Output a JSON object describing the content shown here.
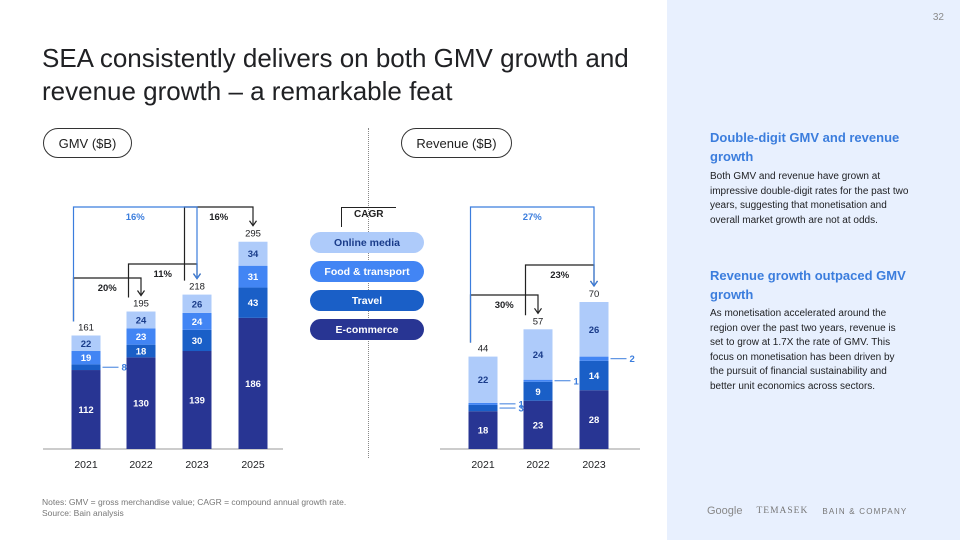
{
  "title": "SEA consistently delivers on both GMV growth and revenue growth – a remarkable feat",
  "page_number": "32",
  "cagr_label": "CAGR",
  "legend": [
    {
      "name": "Online media",
      "color": "#aecbfa",
      "text_color": "#1a3c8a"
    },
    {
      "name": "Food & transport",
      "color": "#4285f4",
      "text_color": "#ffffff"
    },
    {
      "name": "Travel",
      "color": "#1a5fc7",
      "text_color": "#ffffff"
    },
    {
      "name": "E-commerce",
      "color": "#283593",
      "text_color": "#ffffff"
    }
  ],
  "colors": {
    "ecommerce": "#283593",
    "travel": "#1a5fc7",
    "food": "#4285f4",
    "online": "#aecbfa",
    "accent": "#3b7ddd"
  },
  "chart_data": [
    {
      "type": "bar",
      "title": "GMV ($B)",
      "categories": [
        "2021",
        "2022",
        "2023",
        "2025"
      ],
      "series": [
        {
          "name": "E-commerce",
          "values": [
            112,
            130,
            139,
            186
          ]
        },
        {
          "name": "Travel",
          "values": [
            8,
            18,
            30,
            43
          ]
        },
        {
          "name": "Food & transport",
          "values": [
            19,
            23,
            24,
            31
          ]
        },
        {
          "name": "Online media",
          "values": [
            22,
            24,
            26,
            34
          ]
        }
      ],
      "totals": [
        161,
        195,
        218,
        295
      ],
      "cagr": [
        {
          "from": "2021",
          "to": "2022",
          "label": "20%"
        },
        {
          "from": "2022",
          "to": "2023",
          "label": "11%"
        },
        {
          "from": "2023",
          "to": "2025",
          "label": "16%"
        },
        {
          "from": "2021",
          "to": "2023",
          "label": "16%"
        }
      ]
    },
    {
      "type": "bar",
      "title": "Revenue ($B)",
      "categories": [
        "2021",
        "2022",
        "2023"
      ],
      "series": [
        {
          "name": "E-commerce",
          "values": [
            18,
            23,
            28
          ]
        },
        {
          "name": "Travel",
          "values": [
            3,
            9,
            14
          ]
        },
        {
          "name": "Food & transport",
          "values": [
            1,
            1,
            2
          ]
        },
        {
          "name": "Online media",
          "values": [
            22,
            24,
            26
          ]
        }
      ],
      "totals": [
        44,
        57,
        70
      ],
      "cagr": [
        {
          "from": "2021",
          "to": "2022",
          "label": "30%"
        },
        {
          "from": "2022",
          "to": "2023",
          "label": "23%"
        },
        {
          "from": "2021",
          "to": "2023",
          "label": "27%"
        }
      ]
    }
  ],
  "sidebar": {
    "heading1": "Double-digit GMV and revenue growth",
    "para1": "Both GMV and revenue have grown at impressive double-digit rates for the past two years, suggesting that monetisation and overall market growth are not at odds.",
    "heading2": "Revenue growth outpaced GMV growth",
    "para2": "As monetisation accelerated around the region over the past two years, revenue is set to grow at 1.7X the rate of GMV. This focus on monetisation has been driven by the pursuit of financial sustainability and better unit economics across sectors."
  },
  "logos": [
    "Google",
    "TEMASEK",
    "BAIN & COMPANY"
  ],
  "notes": [
    "Notes: GMV = gross merchandise value; CAGR = compound annual growth rate.",
    "Source: Bain analysis"
  ]
}
